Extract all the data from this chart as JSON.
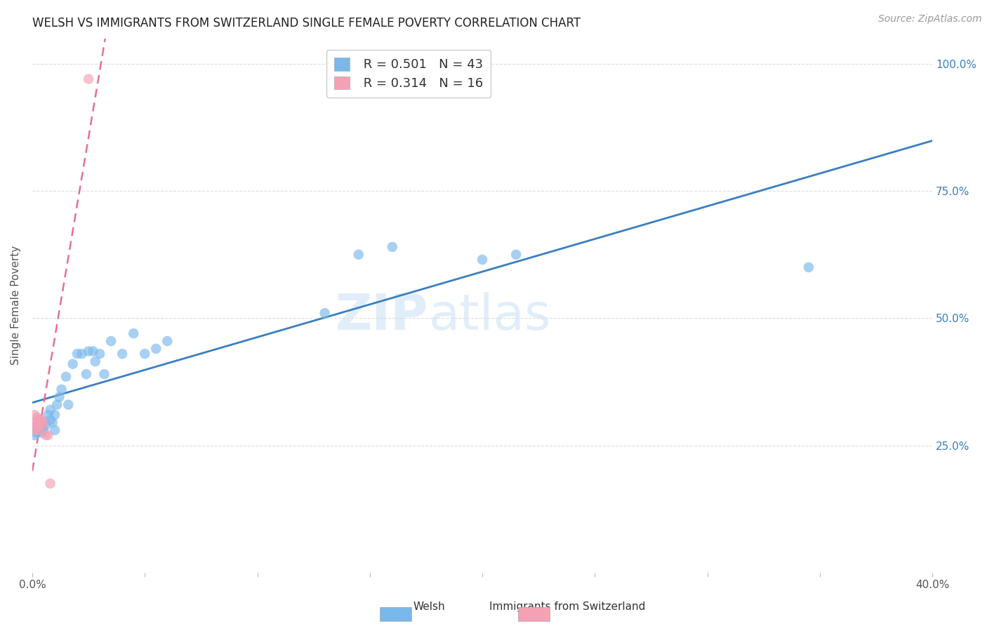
{
  "title": "WELSH VS IMMIGRANTS FROM SWITZERLAND SINGLE FEMALE POVERTY CORRELATION CHART",
  "source": "Source: ZipAtlas.com",
  "ylabel": "Single Female Poverty",
  "xlim": [
    0.0,
    0.4
  ],
  "ylim": [
    0.0,
    1.05
  ],
  "xticks": [
    0.0,
    0.05,
    0.1,
    0.15,
    0.2,
    0.25,
    0.3,
    0.35,
    0.4
  ],
  "yticks": [
    0.0,
    0.25,
    0.5,
    0.75,
    1.0
  ],
  "yticklabels_right": [
    "",
    "25.0%",
    "50.0%",
    "75.0%",
    "100.0%"
  ],
  "r_welsh": 0.501,
  "n_welsh": 43,
  "r_swiss": 0.314,
  "n_swiss": 16,
  "welsh_color": "#7ab8ec",
  "swiss_color": "#f4a0b5",
  "welsh_line_color": "#3a7fc1",
  "swiss_line_color": "#e87090",
  "watermark_zip": "ZIP",
  "watermark_atlas": "atlas",
  "welsh_x": [
    0.001,
    0.001,
    0.002,
    0.002,
    0.003,
    0.003,
    0.004,
    0.004,
    0.005,
    0.005,
    0.006,
    0.007,
    0.008,
    0.008,
    0.009,
    0.01,
    0.01,
    0.011,
    0.012,
    0.013,
    0.015,
    0.016,
    0.018,
    0.02,
    0.022,
    0.024,
    0.025,
    0.027,
    0.028,
    0.03,
    0.032,
    0.035,
    0.04,
    0.045,
    0.05,
    0.055,
    0.06,
    0.13,
    0.145,
    0.16,
    0.2,
    0.215,
    0.345
  ],
  "welsh_y": [
    0.285,
    0.27,
    0.29,
    0.275,
    0.3,
    0.285,
    0.285,
    0.275,
    0.295,
    0.28,
    0.29,
    0.31,
    0.32,
    0.3,
    0.295,
    0.31,
    0.28,
    0.33,
    0.345,
    0.36,
    0.385,
    0.33,
    0.41,
    0.43,
    0.43,
    0.39,
    0.435,
    0.435,
    0.415,
    0.43,
    0.39,
    0.455,
    0.43,
    0.47,
    0.43,
    0.44,
    0.455,
    0.51,
    0.625,
    0.64,
    0.615,
    0.625,
    0.6
  ],
  "swiss_x": [
    0.001,
    0.001,
    0.001,
    0.002,
    0.002,
    0.002,
    0.003,
    0.003,
    0.003,
    0.004,
    0.004,
    0.005,
    0.006,
    0.007,
    0.008,
    0.025
  ],
  "swiss_y": [
    0.28,
    0.295,
    0.31,
    0.295,
    0.305,
    0.285,
    0.29,
    0.3,
    0.28,
    0.29,
    0.3,
    0.295,
    0.27,
    0.27,
    0.175,
    0.97
  ]
}
